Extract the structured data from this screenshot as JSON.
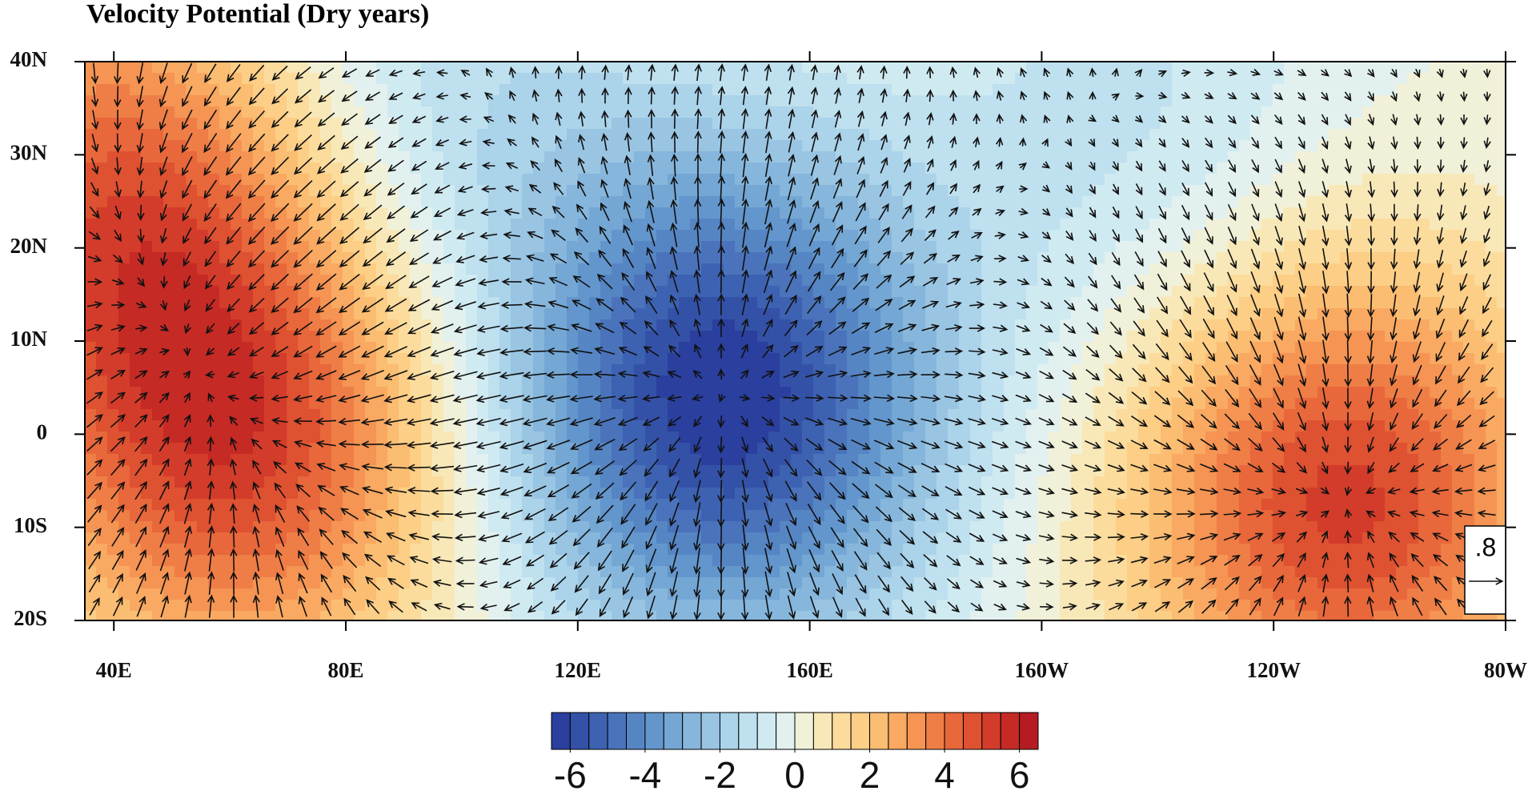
{
  "map": {
    "title": "Velocity Potential (Dry years)",
    "lonlim": [
      35,
      280
    ],
    "latlim": [
      -20,
      40
    ],
    "lonticks": [
      {
        "value": 40,
        "label": "40E"
      },
      {
        "value": 80,
        "label": "80E"
      },
      {
        "value": 120,
        "label": "120E"
      },
      {
        "value": 160,
        "label": "160E"
      },
      {
        "value": 200,
        "label": "160W"
      },
      {
        "value": 240,
        "label": "120W"
      },
      {
        "value": 280,
        "label": "80W"
      }
    ],
    "latticks": [
      {
        "value": -20,
        "label": "20S"
      },
      {
        "value": -10,
        "label": "10S"
      },
      0,
      {
        "value": 10,
        "label": "10N"
      },
      {
        "value": 20,
        "label": "20N"
      },
      {
        "value": 30,
        "label": "30N"
      },
      {
        "value": 40,
        "label": "40N"
      }
    ],
    "centers": [
      {
        "lon": 62,
        "lat": -1,
        "value": 4.8
      },
      {
        "lon": 40,
        "lat": 26,
        "value": 4.0
      },
      {
        "lon": 145,
        "lat": 4,
        "value": -6.5
      },
      {
        "lon": 252,
        "lat": -7,
        "value": 5.2
      },
      {
        "lon": 215,
        "lat": 33,
        "value": -1.2
      },
      {
        "lon": 95,
        "lat": 35,
        "value": -1.5
      }
    ],
    "colorbar": {
      "lim": [
        -6.5,
        6.5
      ],
      "ticks": [
        -6,
        -4,
        -2,
        0,
        2,
        4,
        6
      ],
      "colors": [
        "#2a3f9e",
        "#3451a8",
        "#3e62b2",
        "#4a73bb",
        "#5685c4",
        "#6396cc",
        "#74a7d4",
        "#86b6dc",
        "#99c5e3",
        "#abd3ea",
        "#bee0ef",
        "#d0eaf1",
        "#e2f1ef",
        "#f1f0d8",
        "#f8e8b8",
        "#fbdc9c",
        "#fcce86",
        "#fbbd72",
        "#f9a961",
        "#f59453",
        "#ef7e46",
        "#e8673b",
        "#de5131",
        "#d33c2a",
        "#c52a25",
        "#b51b22"
      ]
    },
    "reference_vector": {
      "value": 0.8,
      "label": ".8"
    }
  }
}
